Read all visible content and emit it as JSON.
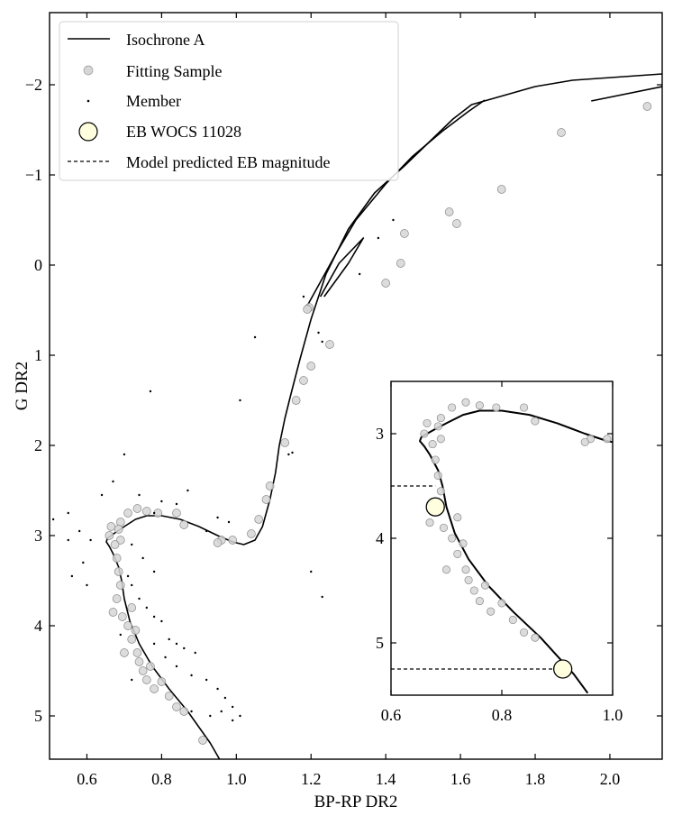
{
  "chart_data": {
    "type": "scatter",
    "xlabel": "BP-RP DR2",
    "ylabel": "G DR2",
    "xlim": [
      0.5,
      2.14
    ],
    "ylim": [
      5.48,
      -2.8
    ],
    "y_inverted": true,
    "grid": false,
    "legend_position": "top-left",
    "xticks": [
      "0.6",
      "0.8",
      "1.0",
      "1.2",
      "1.4",
      "1.6",
      "1.8",
      "2.0"
    ],
    "yticks": [
      "−2",
      "−1",
      "0",
      "1",
      "2",
      "3",
      "4",
      "5"
    ],
    "legend": [
      {
        "label": "Isochrone A",
        "marker": "line"
      },
      {
        "label": "Fitting Sample",
        "marker": "gray-circle"
      },
      {
        "label": "Member",
        "marker": "dot"
      },
      {
        "label": "EB WOCS 11028",
        "marker": "large-yellow-circle"
      },
      {
        "label": "Model predicted EB magnitude",
        "marker": "dashed-line"
      }
    ],
    "series": [
      {
        "label_ref": "Isochrone A",
        "style": "line",
        "color": "#000000",
        "branches": [
          [
            [
              0.955,
              5.48
            ],
            [
              0.93,
              5.3
            ],
            [
              0.87,
              4.95
            ],
            [
              0.82,
              4.7
            ],
            [
              0.775,
              4.45
            ],
            [
              0.74,
              4.2
            ],
            [
              0.715,
              3.95
            ],
            [
              0.7,
              3.7
            ],
            [
              0.693,
              3.5
            ],
            [
              0.685,
              3.35
            ],
            [
              0.67,
              3.2
            ],
            [
              0.66,
              3.12
            ],
            [
              0.652,
              3.07
            ],
            [
              0.655,
              3.03
            ],
            [
              0.675,
              2.97
            ],
            [
              0.7,
              2.9
            ],
            [
              0.73,
              2.82
            ],
            [
              0.76,
              2.78
            ],
            [
              0.8,
              2.78
            ],
            [
              0.85,
              2.82
            ],
            [
              0.9,
              2.9
            ],
            [
              0.95,
              3.0
            ],
            [
              0.99,
              3.07
            ],
            [
              1.02,
              3.1
            ],
            [
              1.05,
              3.05
            ],
            [
              1.07,
              2.9
            ],
            [
              1.09,
              2.6
            ],
            [
              1.105,
              2.3
            ],
            [
              1.115,
              2.0
            ],
            [
              1.13,
              1.7
            ],
            [
              1.145,
              1.45
            ],
            [
              1.17,
              1.05
            ],
            [
              1.2,
              0.6
            ],
            [
              1.24,
              0.1
            ],
            [
              1.3,
              -0.4
            ],
            [
              1.37,
              -0.8
            ],
            [
              1.45,
              -1.1
            ],
            [
              1.52,
              -1.38
            ],
            [
              1.58,
              -1.62
            ],
            [
              1.63,
              -1.78
            ],
            [
              1.8,
              -1.98
            ],
            [
              1.9,
              -2.05
            ],
            [
              2.14,
              -2.12
            ]
          ],
          [
            [
              1.19,
              0.45
            ],
            [
              1.23,
              0.15
            ],
            [
              1.27,
              -0.15
            ],
            [
              1.32,
              -0.5
            ],
            [
              1.4,
              -0.9
            ],
            [
              1.47,
              -1.2
            ],
            [
              1.55,
              -1.48
            ],
            [
              1.62,
              -1.7
            ],
            [
              1.665,
              -1.83
            ]
          ],
          [
            [
              1.235,
              0.35
            ],
            [
              1.3,
              -0.02
            ],
            [
              1.34,
              -0.3
            ],
            [
              1.275,
              -0.02
            ],
            [
              1.225,
              0.35
            ]
          ],
          [
            [
              1.95,
              -1.82
            ],
            [
              2.14,
              -1.98
            ]
          ]
        ]
      },
      {
        "label_ref": "Fitting Sample",
        "style": "points",
        "color": "#cccccc",
        "points": [
          [
            2.1,
            -1.76
          ],
          [
            1.87,
            -1.47
          ],
          [
            1.71,
            -0.84
          ],
          [
            1.59,
            -0.46
          ],
          [
            1.57,
            -0.59
          ],
          [
            1.45,
            -0.35
          ],
          [
            1.44,
            -0.02
          ],
          [
            1.4,
            0.2
          ],
          [
            1.195,
            0.47
          ],
          [
            1.19,
            0.49
          ],
          [
            1.25,
            0.88
          ],
          [
            1.2,
            1.12
          ],
          [
            1.18,
            1.28
          ],
          [
            1.16,
            1.5
          ],
          [
            1.13,
            1.97
          ],
          [
            1.09,
            2.45
          ],
          [
            1.08,
            2.6
          ],
          [
            1.06,
            2.82
          ],
          [
            1.04,
            2.98
          ],
          [
            0.96,
            3.05
          ],
          [
            0.99,
            3.05
          ],
          [
            0.95,
            3.08
          ],
          [
            0.86,
            2.88
          ],
          [
            0.84,
            2.75
          ],
          [
            0.79,
            2.75
          ],
          [
            0.76,
            2.73
          ],
          [
            0.735,
            2.7
          ],
          [
            0.71,
            2.75
          ],
          [
            0.69,
            2.85
          ],
          [
            0.665,
            2.9
          ],
          [
            0.685,
            2.93
          ],
          [
            0.66,
            3.0
          ],
          [
            0.69,
            3.05
          ],
          [
            0.675,
            3.1
          ],
          [
            0.68,
            3.25
          ],
          [
            0.685,
            3.4
          ],
          [
            0.69,
            3.55
          ],
          [
            0.68,
            3.7
          ],
          [
            0.67,
            3.85
          ],
          [
            0.695,
            3.9
          ],
          [
            0.71,
            4.0
          ],
          [
            0.72,
            4.15
          ],
          [
            0.735,
            4.3
          ],
          [
            0.75,
            4.5
          ],
          [
            0.77,
            4.45
          ],
          [
            0.8,
            4.62
          ],
          [
            0.78,
            4.7
          ],
          [
            0.82,
            4.78
          ],
          [
            0.84,
            4.9
          ],
          [
            0.86,
            4.95
          ],
          [
            0.91,
            5.27
          ],
          [
            0.72,
            3.8
          ],
          [
            0.7,
            4.3
          ],
          [
            0.73,
            4.05
          ],
          [
            0.74,
            4.4
          ],
          [
            0.76,
            4.6
          ]
        ]
      },
      {
        "label_ref": "Member",
        "style": "points",
        "color": "#000000",
        "points": [
          [
            0.51,
            2.82
          ],
          [
            0.55,
            2.75
          ],
          [
            0.58,
            2.95
          ],
          [
            0.61,
            3.05
          ],
          [
            0.59,
            3.3
          ],
          [
            0.56,
            3.45
          ],
          [
            0.6,
            3.55
          ],
          [
            0.55,
            3.05
          ],
          [
            0.72,
            3.1
          ],
          [
            0.75,
            3.25
          ],
          [
            0.78,
            3.4
          ],
          [
            0.72,
            3.55
          ],
          [
            0.74,
            3.7
          ],
          [
            0.76,
            3.8
          ],
          [
            0.78,
            3.9
          ],
          [
            0.8,
            3.95
          ],
          [
            0.82,
            4.15
          ],
          [
            0.84,
            4.2
          ],
          [
            0.86,
            4.25
          ],
          [
            0.89,
            4.3
          ],
          [
            0.88,
            4.55
          ],
          [
            0.92,
            4.6
          ],
          [
            0.95,
            4.7
          ],
          [
            0.97,
            4.8
          ],
          [
            0.99,
            4.9
          ],
          [
            1.01,
            5.0
          ],
          [
            0.88,
            4.95
          ],
          [
            0.93,
            5.0
          ],
          [
            0.96,
            4.95
          ],
          [
            0.84,
            4.45
          ],
          [
            0.81,
            4.35
          ],
          [
            0.78,
            4.2
          ],
          [
            0.72,
            4.6
          ],
          [
            0.69,
            4.1
          ],
          [
            0.71,
            3.45
          ],
          [
            0.77,
            1.4
          ],
          [
            0.7,
            2.1
          ],
          [
            0.74,
            2.55
          ],
          [
            0.78,
            2.75
          ],
          [
            0.8,
            2.62
          ],
          [
            0.84,
            2.65
          ],
          [
            0.87,
            2.5
          ],
          [
            0.67,
            2.4
          ],
          [
            0.64,
            2.55
          ],
          [
            0.95,
            2.8
          ],
          [
            0.98,
            2.85
          ],
          [
            0.92,
            2.95
          ],
          [
            1.01,
            1.5
          ],
          [
            1.05,
            0.8
          ],
          [
            1.18,
            0.35
          ],
          [
            1.22,
            0.75
          ],
          [
            1.23,
            0.85
          ],
          [
            1.33,
            0.1
          ],
          [
            1.38,
            -0.3
          ],
          [
            1.42,
            -0.5
          ],
          [
            1.14,
            2.1
          ],
          [
            1.15,
            2.08
          ],
          [
            1.23,
            3.68
          ],
          [
            1.2,
            3.4
          ],
          [
            0.99,
            5.05
          ]
        ]
      },
      {
        "label_ref": "EB WOCS 11028",
        "style": "points",
        "color": "#ffffe0",
        "points": [
          [
            0.68,
            3.7
          ],
          [
            0.91,
            5.25
          ]
        ]
      },
      {
        "label_ref": "Model predicted EB magnitude",
        "style": "dashed-hlines",
        "color": "#000000",
        "inset_only": true,
        "y_values": [
          3.5,
          5.25
        ]
      }
    ],
    "inset": {
      "xlim": [
        0.6,
        1.0
      ],
      "ylim": [
        5.5,
        2.5
      ],
      "xticks": [
        "0.6",
        "0.8",
        "1.0"
      ],
      "yticks": [
        "3",
        "4",
        "5"
      ]
    }
  }
}
